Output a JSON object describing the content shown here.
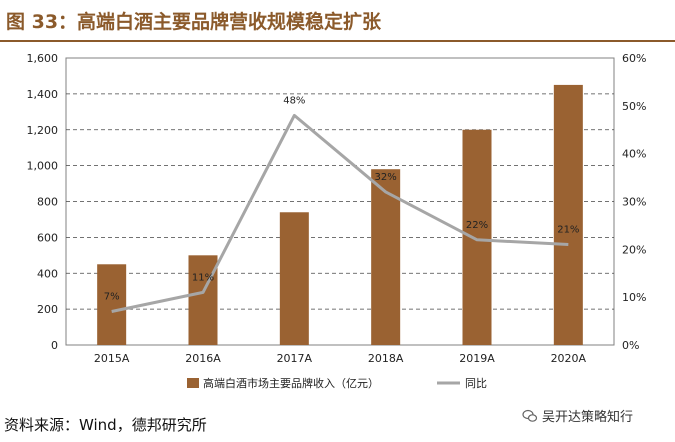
{
  "header": {
    "title": "图 33：高端白酒主要品牌营收规模稳定扩张"
  },
  "footer": {
    "source": "资料来源：Wind，德邦研究所",
    "watermark": "吴开达策略知行"
  },
  "colors": {
    "bar": "#9a6232",
    "line": "#a6a6a6",
    "title": "#8b5a2b",
    "frame": "#808080"
  },
  "chart_data": {
    "type": "bar",
    "categories": [
      "2015A",
      "2016A",
      "2017A",
      "2018A",
      "2019A",
      "2020A"
    ],
    "series": [
      {
        "name": "高端白酒市场主要品牌收入（亿元）",
        "type": "bar",
        "axis": "left",
        "values": [
          450,
          500,
          740,
          980,
          1200,
          1450
        ]
      },
      {
        "name": "同比",
        "type": "line",
        "axis": "right",
        "values": [
          7,
          11,
          48,
          32,
          22,
          21
        ],
        "labels": [
          "7%",
          "11%",
          "48%",
          "32%",
          "22%",
          "21%"
        ]
      }
    ],
    "y_left": {
      "lim": [
        0,
        1600
      ],
      "ticks": [
        "0",
        "200",
        "400",
        "600",
        "800",
        "1,000",
        "1,200",
        "1,400",
        "1,600"
      ]
    },
    "y_right": {
      "lim": [
        0,
        60
      ],
      "ticks": [
        "0%",
        "10%",
        "20%",
        "30%",
        "40%",
        "50%",
        "60%"
      ]
    },
    "grid": "horizontal-dashed",
    "legend_position": "bottom"
  }
}
